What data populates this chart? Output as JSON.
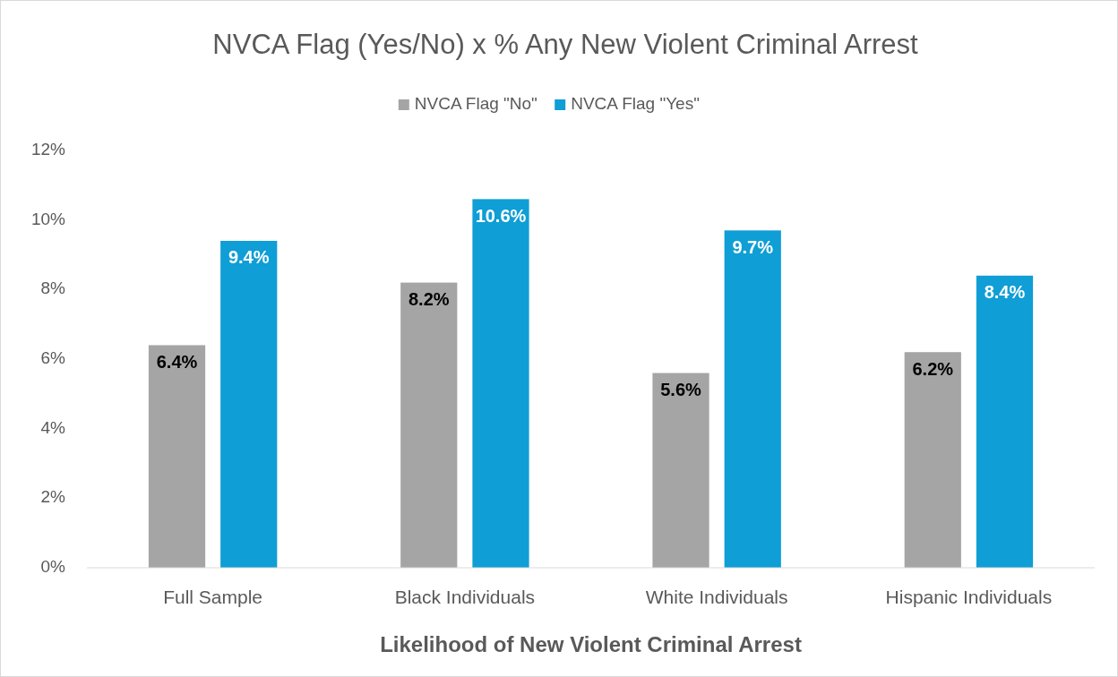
{
  "chart_data": {
    "type": "bar",
    "title": "NVCA Flag (Yes/No) x % Any New Violent Criminal Arrest",
    "xlabel": "Likelihood of New Violent Criminal Arrest",
    "categories": [
      "Full Sample",
      "Black Individuals",
      "White Individuals",
      "Hispanic Individuals"
    ],
    "series": [
      {
        "name": "NVCA Flag \"No\"",
        "color": "#a5a5a5",
        "values": [
          6.4,
          8.2,
          5.6,
          6.2
        ],
        "value_labels": [
          "6.4%",
          "8.2%",
          "5.6%",
          "6.2%"
        ]
      },
      {
        "name": "NVCA Flag \"Yes\"",
        "color": "#0f9ed5",
        "values": [
          9.4,
          10.6,
          9.7,
          8.4
        ],
        "value_labels": [
          "9.4%",
          "10.6%",
          "9.7%",
          "8.4%"
        ]
      }
    ],
    "ylim": [
      0,
      12
    ],
    "yticks": [
      {
        "value": 0,
        "label": "0%"
      },
      {
        "value": 2,
        "label": "2%"
      },
      {
        "value": 4,
        "label": "4%"
      },
      {
        "value": 6,
        "label": "6%"
      },
      {
        "value": 8,
        "label": "8%"
      },
      {
        "value": 10,
        "label": "10%"
      },
      {
        "value": 12,
        "label": "12%"
      }
    ],
    "grid": false,
    "legend": "top"
  }
}
